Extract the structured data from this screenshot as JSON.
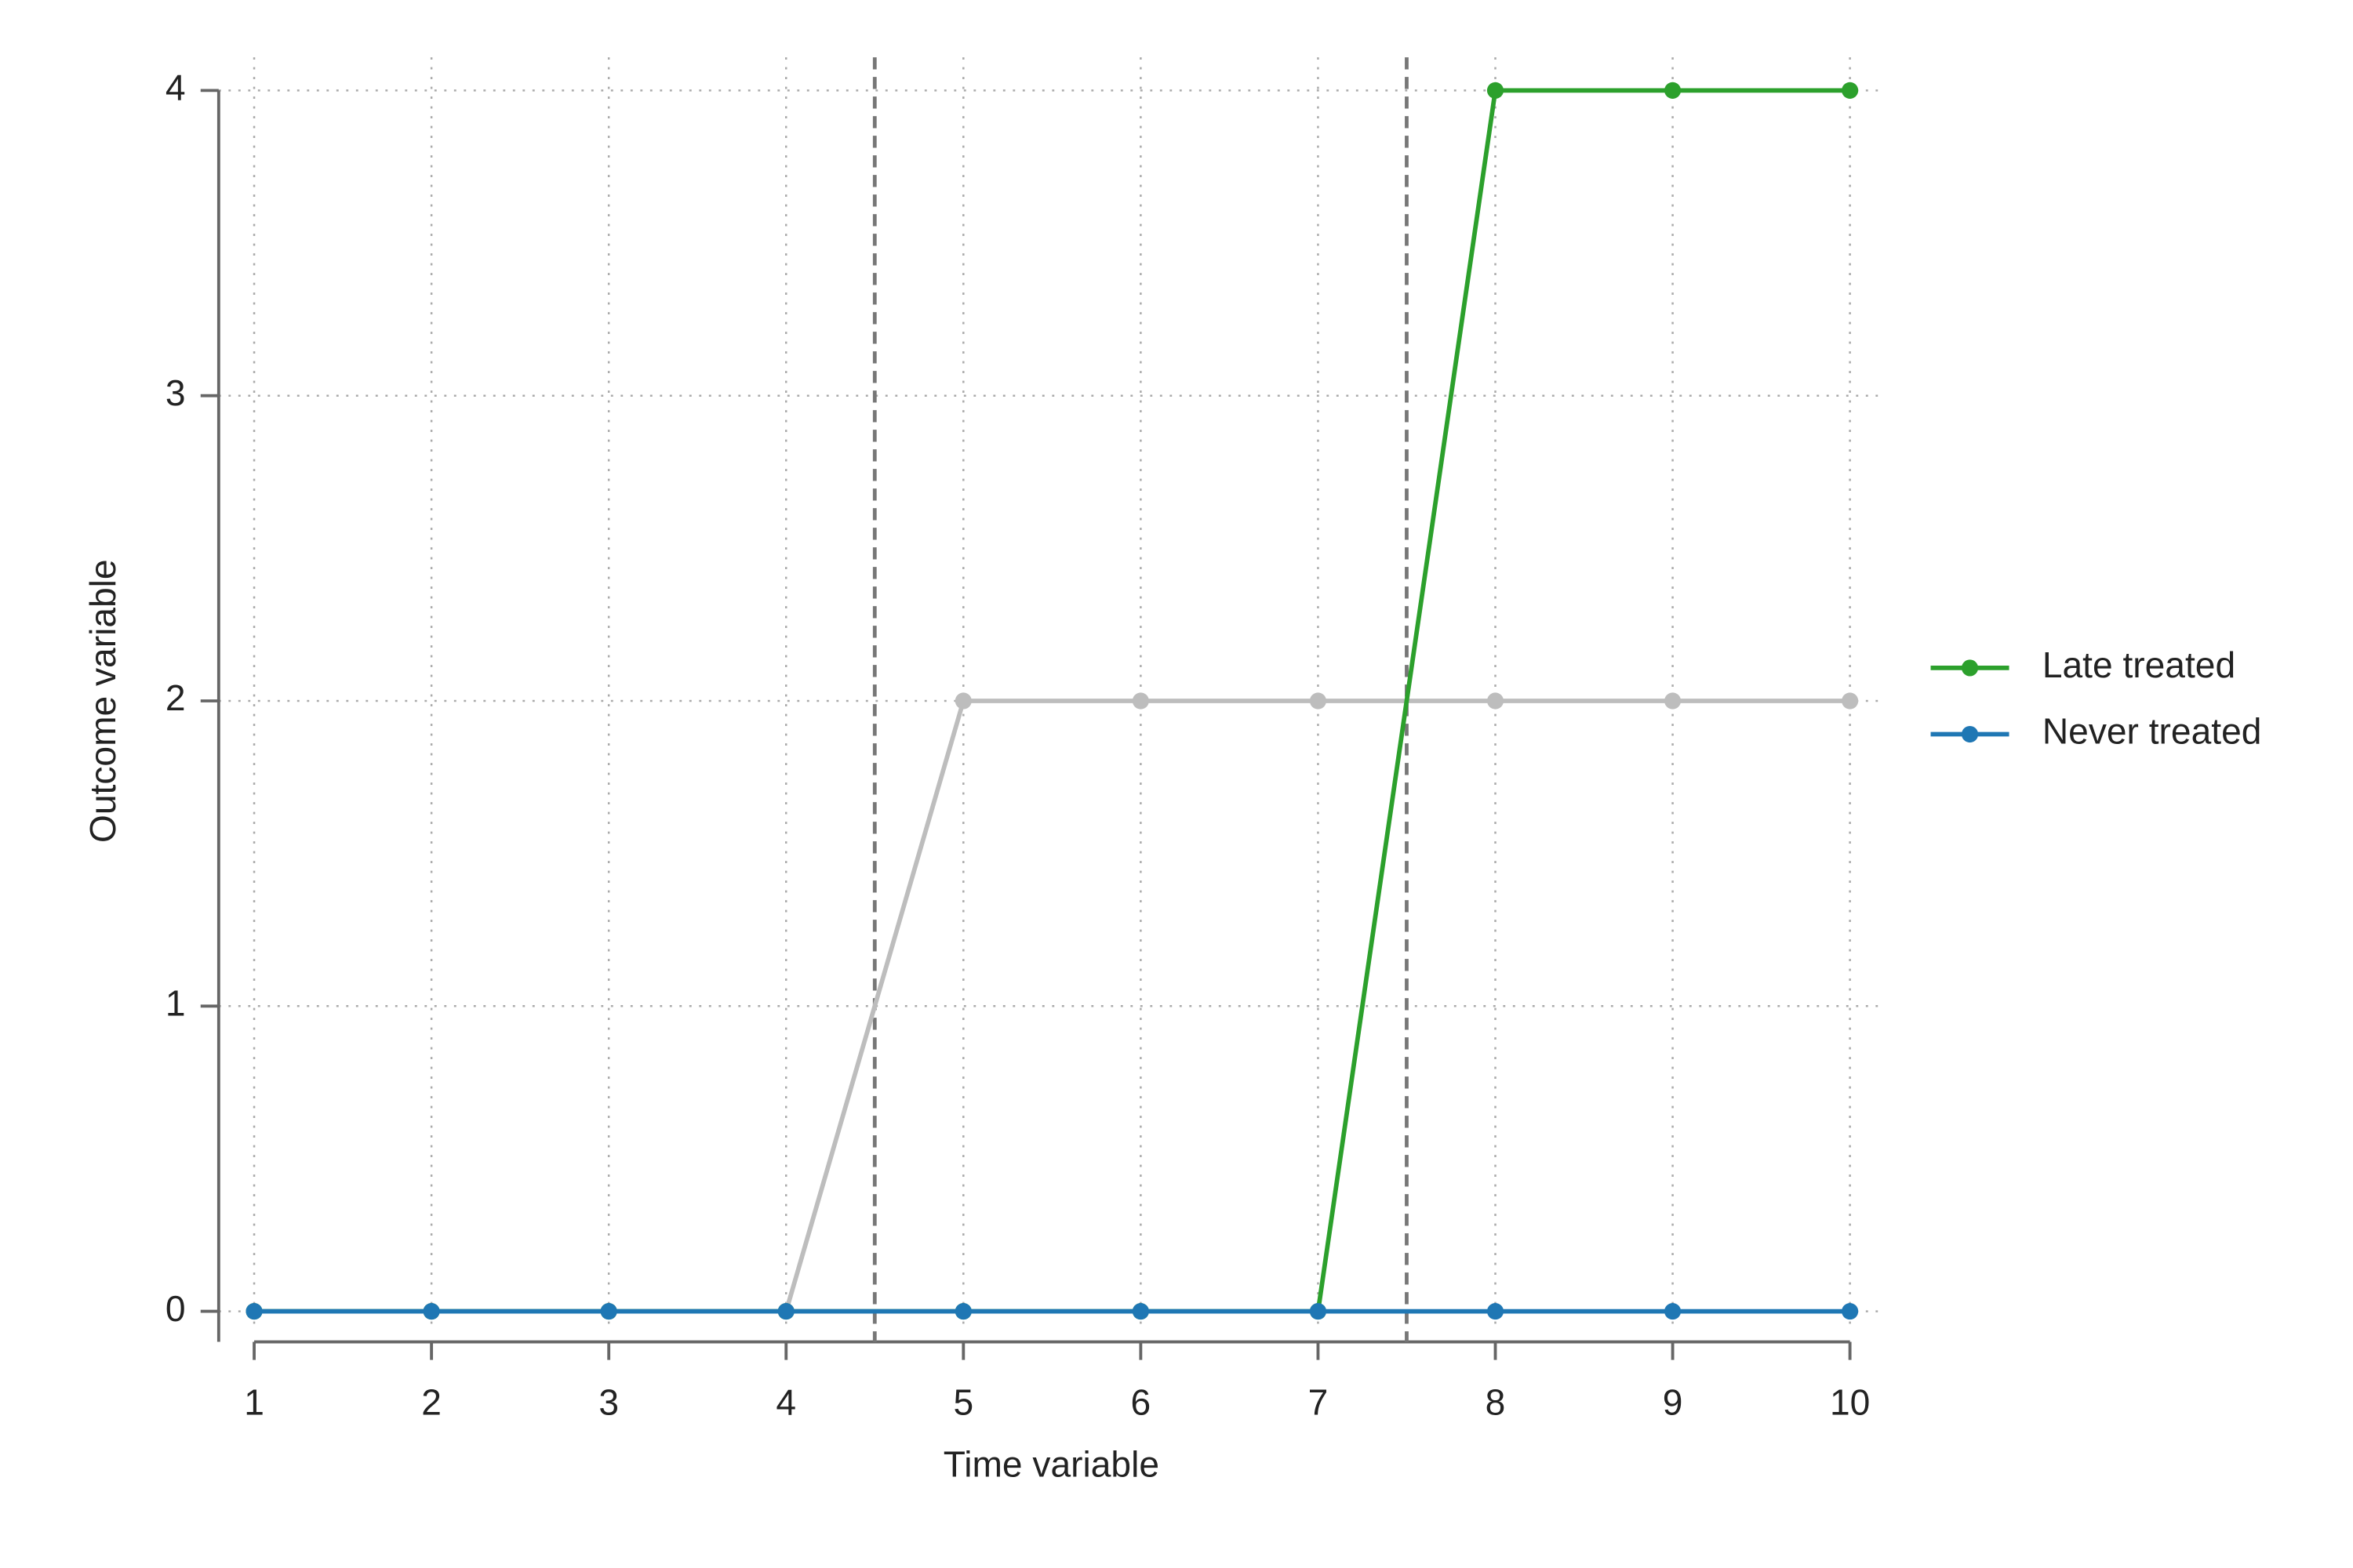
{
  "chart_data": {
    "type": "line",
    "x_label": "Time  variable",
    "y_label": "Outcome variable",
    "x": [
      1,
      2,
      3,
      4,
      5,
      6,
      7,
      8,
      9,
      10
    ],
    "series": [
      {
        "color": "#bdbdbd",
        "values": [
          0,
          0,
          0,
          0,
          2,
          2,
          2,
          2,
          2,
          2
        ]
      },
      {
        "name": "Late treated",
        "color": "#2ca02c",
        "values": [
          0,
          0,
          0,
          0,
          0,
          0,
          0,
          4,
          4,
          4
        ]
      },
      {
        "name": "Never treated",
        "color": "#1f77b4",
        "values": [
          0,
          0,
          0,
          0,
          0,
          0,
          0,
          0,
          0,
          0
        ]
      }
    ],
    "legend_order": [
      1,
      2
    ],
    "vlines": [
      4.5,
      7.5
    ],
    "xlim": [
      0.8,
      10.2
    ],
    "xticks": [
      1,
      2,
      3,
      4,
      5,
      6,
      7,
      8,
      9,
      10
    ],
    "ylim": [
      -0.1,
      4
    ],
    "yticks": [
      0,
      1,
      2,
      3,
      4
    ],
    "grid": true,
    "legend": "right"
  }
}
